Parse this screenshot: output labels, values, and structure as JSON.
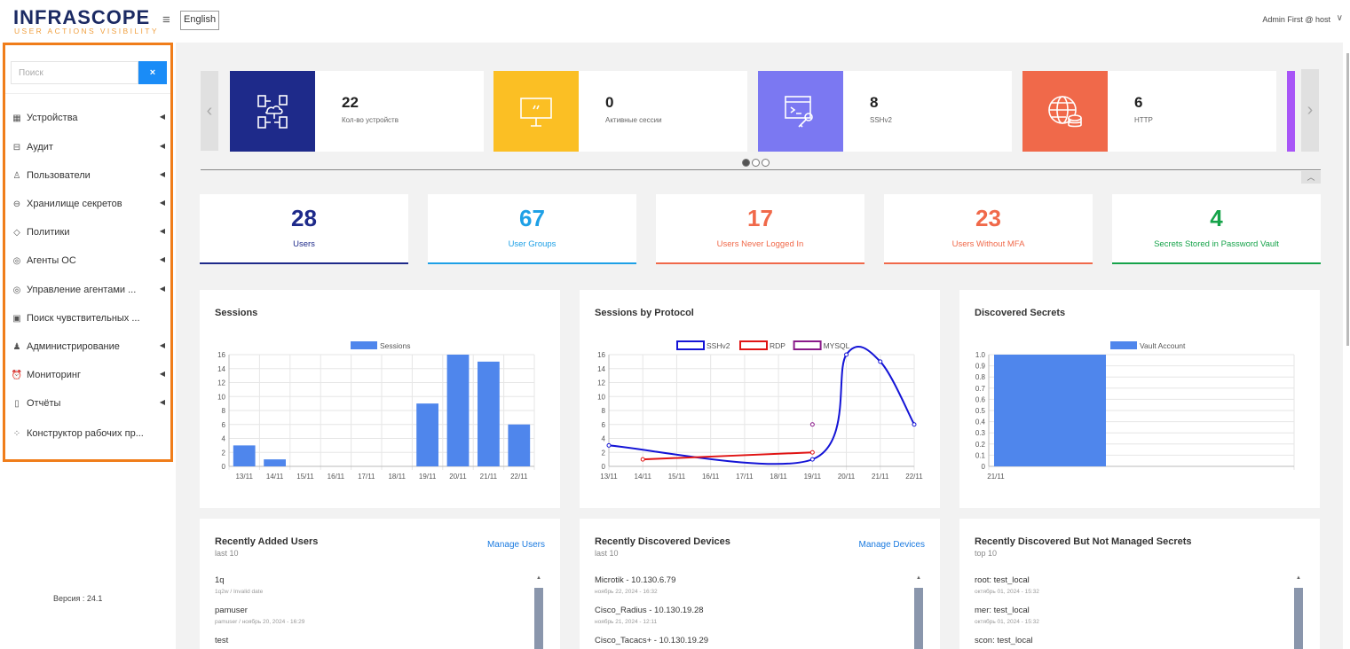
{
  "header": {
    "logo_title": "INFRASCOPE",
    "logo_subtitle": "USER ACTIONS VISIBILITY",
    "language": "English",
    "user": "Admin First @ host"
  },
  "sidebar": {
    "search_placeholder": "Поиск",
    "clear_label": "×",
    "items": [
      {
        "label": "Устройства",
        "icon": "devices-icon",
        "has_arrow": true
      },
      {
        "label": "Аудит",
        "icon": "audit-icon",
        "has_arrow": true
      },
      {
        "label": "Пользователи",
        "icon": "user-icon",
        "has_arrow": true
      },
      {
        "label": "Хранилище секретов",
        "icon": "vault-icon",
        "has_arrow": true
      },
      {
        "label": "Политики",
        "icon": "shield-icon",
        "has_arrow": true
      },
      {
        "label": "Агенты ОС",
        "icon": "agent-icon",
        "has_arrow": true
      },
      {
        "label": "Управление агентами ...",
        "icon": "agent-management-icon",
        "has_arrow": true
      },
      {
        "label": "Поиск чувствительных ...",
        "icon": "sensitive-search-icon",
        "has_arrow": false
      },
      {
        "label": "Администрирование",
        "icon": "admin-icon",
        "has_arrow": true
      },
      {
        "label": "Мониторинг",
        "icon": "monitoring-icon",
        "has_arrow": true
      },
      {
        "label": "Отчёты",
        "icon": "reports-icon",
        "has_arrow": true
      },
      {
        "label": "Конструктор рабочих пр...",
        "icon": "workflow-icon",
        "has_arrow": false
      }
    ],
    "version": "Версия : 24.1"
  },
  "carousel": {
    "cards": [
      {
        "value": "22",
        "label": "Кол-во устройств",
        "color": "#1e2a8a",
        "icon": "network-devices-icon"
      },
      {
        "value": "0",
        "label": "Активные сессии",
        "color": "#fbbf24",
        "icon": "monitor-icon"
      },
      {
        "value": "8",
        "label": "SSHv2",
        "color": "#7b78f2",
        "icon": "terminal-key-icon"
      },
      {
        "value": "6",
        "label": "HTTP",
        "color": "#f0694a",
        "icon": "globe-database-icon"
      }
    ],
    "next_card_color": "#a855f7"
  },
  "stats": [
    {
      "value": "28",
      "label": "Users",
      "color": "#1e2a8a"
    },
    {
      "value": "67",
      "label": "User Groups",
      "color": "#1ea0e6"
    },
    {
      "value": "17",
      "label": "Users Never Logged In",
      "color": "#f0694a"
    },
    {
      "value": "23",
      "label": "Users Without MFA",
      "color": "#f0694a"
    },
    {
      "value": "4",
      "label": "Secrets Stored in Password Vault",
      "color": "#16a34a"
    }
  ],
  "charts": {
    "sessions_title": "Sessions",
    "protocol_title": "Sessions by Protocol",
    "secrets_title": "Discovered Secrets"
  },
  "chart_data": [
    {
      "type": "bar",
      "title": "Sessions",
      "categories": [
        "13/11",
        "14/11",
        "15/11",
        "16/11",
        "17/11",
        "18/11",
        "19/11",
        "20/11",
        "21/11",
        "22/11"
      ],
      "series": [
        {
          "name": "Sessions",
          "values": [
            3,
            1,
            0,
            0,
            0,
            0,
            9,
            16,
            15,
            6
          ],
          "color": "#4f86ec"
        }
      ],
      "ylim": [
        0,
        16
      ],
      "yticks": [
        0,
        2,
        4,
        6,
        8,
        10,
        12,
        14,
        16
      ],
      "legend": "top-center",
      "grid": true
    },
    {
      "type": "line",
      "title": "Sessions by Protocol",
      "categories": [
        "13/11",
        "14/11",
        "15/11",
        "16/11",
        "17/11",
        "18/11",
        "19/11",
        "20/11",
        "21/11",
        "22/11"
      ],
      "series": [
        {
          "name": "SSHv2",
          "color": "#1414d6",
          "values": [
            3,
            null,
            null,
            null,
            null,
            null,
            1,
            16,
            15,
            6
          ]
        },
        {
          "name": "RDP",
          "color": "#e01414",
          "values": [
            null,
            1,
            null,
            null,
            null,
            null,
            2,
            null,
            null,
            null
          ]
        },
        {
          "name": "MYSQL",
          "color": "#8a1a8a",
          "values": [
            null,
            null,
            null,
            null,
            null,
            null,
            6,
            null,
            null,
            null
          ]
        }
      ],
      "ylim": [
        0,
        16
      ],
      "yticks": [
        0,
        2,
        4,
        6,
        8,
        10,
        12,
        14,
        16
      ],
      "legend": "top-center",
      "grid": true
    },
    {
      "type": "bar",
      "title": "Discovered Secrets",
      "categories": [
        "21/11"
      ],
      "series": [
        {
          "name": "Vault Account",
          "values": [
            1.0
          ],
          "color": "#4f86ec"
        }
      ],
      "ylim": [
        0,
        1.0
      ],
      "yticks": [
        0,
        0.1,
        0.2,
        0.3,
        0.4,
        0.5,
        0.6,
        0.7,
        0.8,
        0.9,
        1.0
      ],
      "legend": "top-center",
      "grid": true
    }
  ],
  "lists": {
    "users": {
      "title": "Recently Added Users",
      "subtitle": "last 10",
      "link": "Manage Users",
      "items": [
        {
          "main": "1q",
          "sub": "1q2w / Invalid date"
        },
        {
          "main": "pamuser",
          "sub": "pamuser / ноябрь 20, 2024 - 16:29"
        },
        {
          "main": "test",
          "sub": ""
        }
      ]
    },
    "devices": {
      "title": "Recently Discovered Devices",
      "subtitle": "last 10",
      "link": "Manage Devices",
      "items": [
        {
          "main": "Microtik - 10.130.6.79",
          "sub": "ноябрь 22, 2024 - 16:32"
        },
        {
          "main": "Cisco_Radius - 10.130.19.28",
          "sub": "ноябрь 21, 2024 - 12:11"
        },
        {
          "main": "Cisco_Tacacs+ - 10.130.19.29",
          "sub": ""
        }
      ]
    },
    "secrets": {
      "title": "Recently Discovered But Not Managed Secrets",
      "subtitle": "top 10",
      "items": [
        {
          "main": "root: test_local",
          "sub": "октябрь 01, 2024 - 15:32"
        },
        {
          "main": "mer: test_local",
          "sub": "октябрь 01, 2024 - 15:32"
        },
        {
          "main": "scon: test_local",
          "sub": ""
        }
      ]
    }
  }
}
